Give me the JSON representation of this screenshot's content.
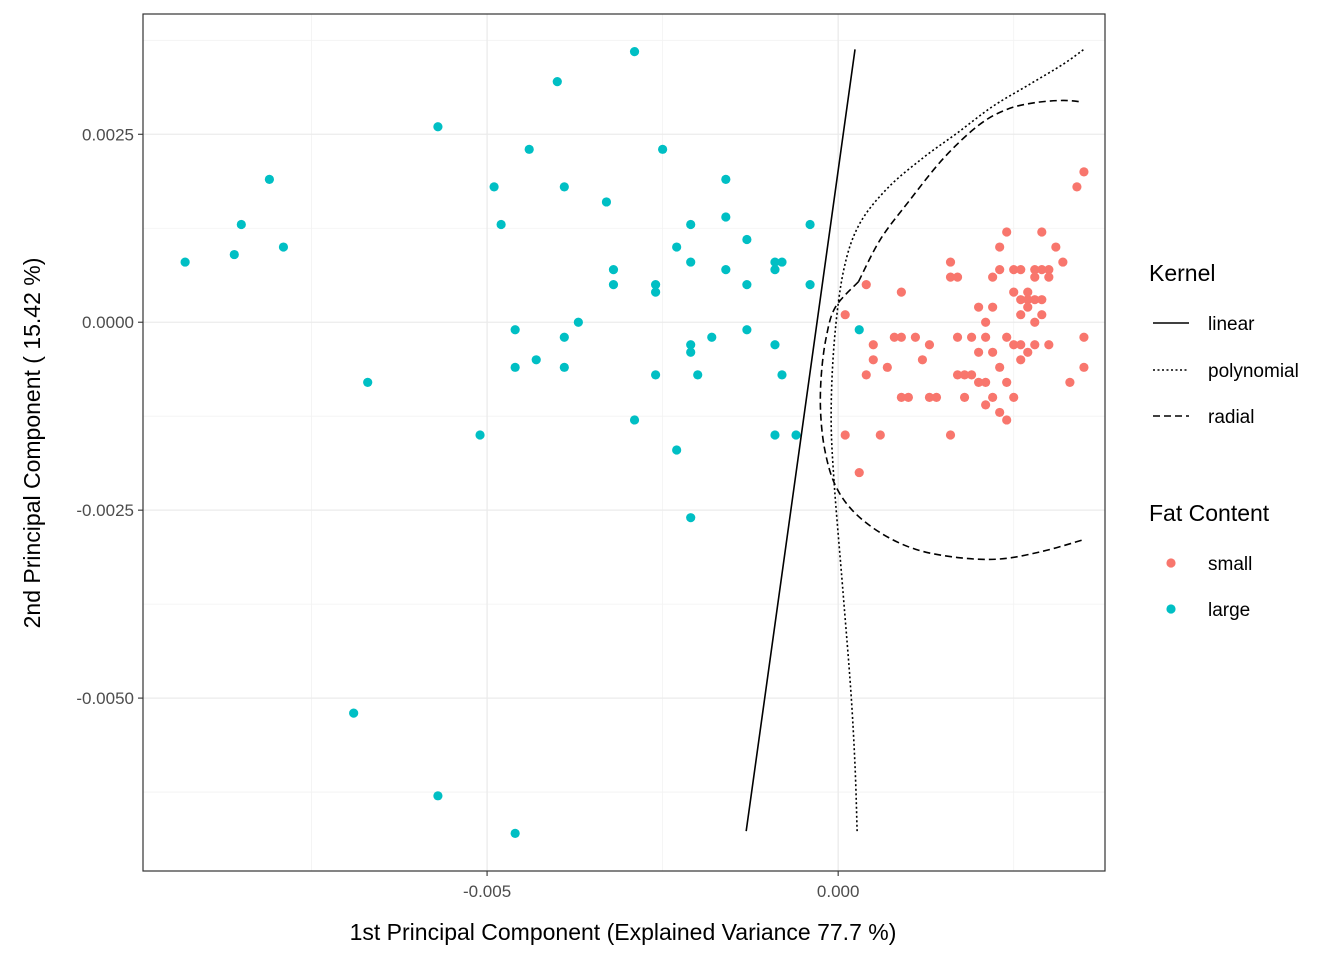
{
  "chart_data": {
    "type": "scatter",
    "xlabel": "1st Principal Component (Explained Variance 77.7 %)",
    "ylabel": "2nd Principal Component ( 15.42 %)",
    "xlim": [
      -0.0099,
      0.0038
    ],
    "ylim": [
      -0.0073,
      0.0041
    ],
    "x_ticks": [
      {
        "value": -0.005,
        "label": "-0.005"
      },
      {
        "value": 0.0,
        "label": "0.000"
      }
    ],
    "y_ticks": [
      {
        "value": 0.0025,
        "label": "0.0025"
      },
      {
        "value": 0.0,
        "label": "0.0000"
      },
      {
        "value": -0.0025,
        "label": "-0.0025"
      },
      {
        "value": -0.005,
        "label": "-0.0050"
      }
    ],
    "grid": true,
    "legend_position": "right",
    "colors": {
      "small": "#f8766d",
      "large": "#00bfc4"
    },
    "legends": {
      "kernel": {
        "title": "Kernel",
        "items": [
          {
            "label": "linear",
            "linetype": "solid"
          },
          {
            "label": "polynomial",
            "linetype": "dotted"
          },
          {
            "label": "radial",
            "linetype": "dashed"
          }
        ]
      },
      "fat": {
        "title": "Fat Content",
        "items": [
          {
            "label": "small",
            "color": "#f8766d"
          },
          {
            "label": "large",
            "color": "#00bfc4"
          }
        ]
      }
    },
    "series": [
      {
        "name": "large",
        "points": [
          [
            -0.0093,
            0.0008
          ],
          [
            -0.0085,
            0.0013
          ],
          [
            -0.0086,
            0.0009
          ],
          [
            -0.0081,
            0.0019
          ],
          [
            -0.0079,
            0.001
          ],
          [
            -0.0067,
            -0.0008
          ],
          [
            -0.0069,
            -0.0052
          ],
          [
            -0.0057,
            0.0026
          ],
          [
            -0.0057,
            -0.0063
          ],
          [
            -0.0051,
            -0.0015
          ],
          [
            -0.0049,
            0.0018
          ],
          [
            -0.0048,
            0.0013
          ],
          [
            -0.0046,
            -0.0001
          ],
          [
            -0.0046,
            -0.0006
          ],
          [
            -0.0046,
            -0.0068
          ],
          [
            -0.0044,
            0.0023
          ],
          [
            -0.0043,
            -0.0005
          ],
          [
            -0.004,
            0.0032
          ],
          [
            -0.0039,
            0.0018
          ],
          [
            -0.0039,
            -0.0002
          ],
          [
            -0.0039,
            -0.0006
          ],
          [
            -0.0037,
            0.0
          ],
          [
            -0.0033,
            0.0016
          ],
          [
            -0.0032,
            0.0007
          ],
          [
            -0.0032,
            0.0005
          ],
          [
            -0.0029,
            0.0036
          ],
          [
            -0.0029,
            -0.0013
          ],
          [
            -0.0026,
            0.0005
          ],
          [
            -0.0026,
            0.0004
          ],
          [
            -0.0026,
            -0.0007
          ],
          [
            -0.0025,
            0.0023
          ],
          [
            -0.0023,
            0.001
          ],
          [
            -0.0023,
            -0.0017
          ],
          [
            -0.0021,
            0.0013
          ],
          [
            -0.0021,
            0.0008
          ],
          [
            -0.0021,
            -0.0003
          ],
          [
            -0.0021,
            -0.0004
          ],
          [
            -0.0021,
            -0.0026
          ],
          [
            -0.002,
            -0.0007
          ],
          [
            -0.0018,
            -0.0002
          ],
          [
            -0.0016,
            0.0019
          ],
          [
            -0.0016,
            0.0014
          ],
          [
            -0.0016,
            0.0007
          ],
          [
            -0.0013,
            0.0011
          ],
          [
            -0.0013,
            0.0005
          ],
          [
            -0.0013,
            -0.0001
          ],
          [
            -0.0009,
            0.0007
          ],
          [
            -0.0009,
            0.0008
          ],
          [
            -0.0009,
            -0.0003
          ],
          [
            -0.0009,
            -0.0015
          ],
          [
            -0.0008,
            -0.0007
          ],
          [
            -0.0008,
            0.0008
          ],
          [
            -0.0006,
            -0.0015
          ],
          [
            -0.0004,
            0.0013
          ],
          [
            -0.0004,
            0.0005
          ],
          [
            0.0003,
            -0.0001
          ]
        ]
      },
      {
        "name": "small",
        "points": [
          [
            0.0001,
            0.0001
          ],
          [
            0.0001,
            -0.0015
          ],
          [
            0.0003,
            -0.002
          ],
          [
            0.0004,
            0.0005
          ],
          [
            0.0004,
            -0.0007
          ],
          [
            0.0005,
            -0.0003
          ],
          [
            0.0005,
            -0.0005
          ],
          [
            0.0006,
            -0.0015
          ],
          [
            0.0007,
            -0.0006
          ],
          [
            0.0008,
            -0.0002
          ],
          [
            0.0009,
            -0.0002
          ],
          [
            0.0009,
            -0.001
          ],
          [
            0.0009,
            0.0004
          ],
          [
            0.001,
            -0.001
          ],
          [
            0.0011,
            -0.0002
          ],
          [
            0.0012,
            -0.0005
          ],
          [
            0.0013,
            -0.0003
          ],
          [
            0.0013,
            -0.001
          ],
          [
            0.0014,
            -0.001
          ],
          [
            0.0016,
            0.0006
          ],
          [
            0.0016,
            0.0008
          ],
          [
            0.0016,
            -0.0015
          ],
          [
            0.0017,
            0.0006
          ],
          [
            0.0017,
            -0.0007
          ],
          [
            0.0017,
            -0.0002
          ],
          [
            0.0018,
            -0.0007
          ],
          [
            0.0018,
            -0.001
          ],
          [
            0.0019,
            -0.0007
          ],
          [
            0.0019,
            -0.0002
          ],
          [
            0.002,
            0.0002
          ],
          [
            0.002,
            -0.0004
          ],
          [
            0.002,
            -0.0008
          ],
          [
            0.0021,
            -0.0011
          ],
          [
            0.0021,
            -0.0008
          ],
          [
            0.0021,
            -0.0002
          ],
          [
            0.0021,
            0.0
          ],
          [
            0.0022,
            0.0006
          ],
          [
            0.0022,
            0.0002
          ],
          [
            0.0022,
            -0.001
          ],
          [
            0.0022,
            -0.0004
          ],
          [
            0.0023,
            0.001
          ],
          [
            0.0023,
            -0.0012
          ],
          [
            0.0023,
            -0.0006
          ],
          [
            0.0023,
            0.0007
          ],
          [
            0.0024,
            0.0012
          ],
          [
            0.0024,
            -0.0013
          ],
          [
            0.0024,
            -0.0002
          ],
          [
            0.0024,
            -0.0008
          ],
          [
            0.0025,
            0.0007
          ],
          [
            0.0025,
            -0.001
          ],
          [
            0.0025,
            0.0004
          ],
          [
            0.0025,
            -0.0003
          ],
          [
            0.0026,
            0.0003
          ],
          [
            0.0026,
            0.0001
          ],
          [
            0.0026,
            -0.0003
          ],
          [
            0.0026,
            -0.0005
          ],
          [
            0.0026,
            0.0007
          ],
          [
            0.0027,
            0.0003
          ],
          [
            0.0027,
            -0.0004
          ],
          [
            0.0027,
            0.0004
          ],
          [
            0.0027,
            0.0002
          ],
          [
            0.0028,
            0.0007
          ],
          [
            0.0028,
            0.0003
          ],
          [
            0.0028,
            0.0006
          ],
          [
            0.0028,
            0.0
          ],
          [
            0.0028,
            -0.0003
          ],
          [
            0.0029,
            0.0007
          ],
          [
            0.0029,
            0.0003
          ],
          [
            0.0029,
            0.0001
          ],
          [
            0.0029,
            0.0012
          ],
          [
            0.003,
            0.0007
          ],
          [
            0.003,
            0.0006
          ],
          [
            0.003,
            -0.0003
          ],
          [
            0.0031,
            0.001
          ],
          [
            0.0032,
            0.0008
          ],
          [
            0.0033,
            -0.0008
          ],
          [
            0.0034,
            0.0018
          ],
          [
            0.0035,
            -0.0002
          ],
          [
            0.0035,
            -0.0006
          ],
          [
            0.0035,
            0.002
          ]
        ]
      }
    ],
    "decision_boundaries": [
      {
        "name": "linear",
        "linetype": "solid",
        "curves": [
          [
            [
              -0.00131,
              -0.00677
            ],
            [
              0.00024,
              0.00363
            ]
          ]
        ]
      },
      {
        "name": "polynomial",
        "linetype": "dotted",
        "curves": [
          [
            [
              0.00027,
              -0.00677
            ],
            [
              0.00024,
              -0.0059
            ],
            [
              0.00018,
              -0.0049
            ],
            [
              7e-05,
              -0.0036
            ],
            [
              -6e-05,
              -0.0021
            ],
            [
              -0.0001,
              -0.0012
            ],
            [
              -5e-05,
              -0.0002
            ],
            [
              8e-05,
              0.0007
            ],
            [
              0.0003,
              0.0013
            ],
            [
              0.0007,
              0.00178
            ],
            [
              0.0012,
              0.00218
            ],
            [
              0.0017,
              0.00252
            ],
            [
              0.0022,
              0.00287
            ],
            [
              0.0027,
              0.00315
            ],
            [
              0.0032,
              0.00343
            ],
            [
              0.0035,
              0.00363
            ]
          ]
        ]
      },
      {
        "name": "radial",
        "linetype": "dashed",
        "curves": [
          [
            [
              0.00029,
              0.00054
            ],
            [
              0.0006,
              0.0011
            ],
            [
              0.001,
              0.0016
            ],
            [
              0.0015,
              0.00218
            ],
            [
              0.002,
              0.00262
            ],
            [
              0.0024,
              0.00283
            ],
            [
              0.0028,
              0.00292
            ],
            [
              0.0032,
              0.00295
            ],
            [
              0.00347,
              0.00293
            ]
          ],
          [
            [
              0.00029,
              0.00054
            ],
            [
              -4e-05,
              0.0002
            ],
            [
              -0.00017,
              -0.0002
            ],
            [
              -0.00024,
              -0.0007
            ],
            [
              -0.00025,
              -0.0012
            ],
            [
              -0.00019,
              -0.0017
            ],
            [
              -5e-05,
              -0.00215
            ],
            [
              0.0002,
              -0.0025
            ],
            [
              0.0006,
              -0.0028
            ],
            [
              0.0011,
              -0.00302
            ],
            [
              0.0017,
              -0.00313
            ],
            [
              0.0023,
              -0.00315
            ],
            [
              0.0029,
              -0.00305
            ],
            [
              0.00347,
              -0.0029
            ]
          ]
        ]
      }
    ]
  }
}
